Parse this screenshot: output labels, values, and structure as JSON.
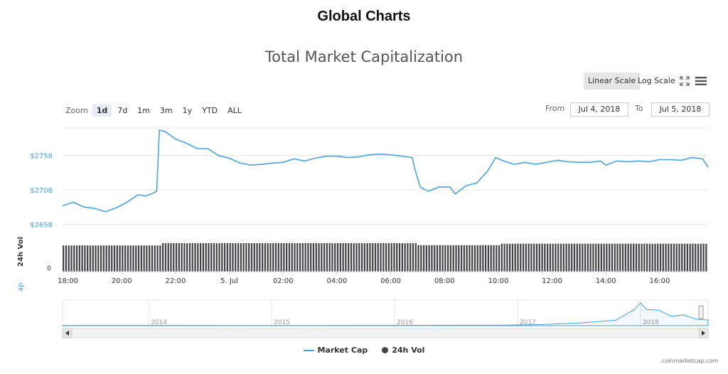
{
  "page": {
    "title": "Global Charts",
    "credit": "coinmarketcap.com"
  },
  "toolbar": {
    "linear_label": "Linear Scale",
    "log_label": "Log Scale",
    "expand_icon": "expand-icon",
    "menu_icon": "hamburger-menu-icon"
  },
  "zoom": {
    "label": "Zoom",
    "options": [
      "1d",
      "7d",
      "1m",
      "3m",
      "1y",
      "YTD",
      "ALL"
    ],
    "selected": "1d"
  },
  "range": {
    "from_label": "From",
    "from_value": "Jul 4, 2018",
    "to_label": "To",
    "to_value": "Jul 5, 2018"
  },
  "colors": {
    "market_cap": "#4aa3df",
    "volume": "#434348",
    "navigator": "#4aa3df"
  },
  "chart_data": {
    "type": "line",
    "title": "Total Market Capitalization",
    "ylabel": "Market Cap",
    "volume_ylabel": "24h Vol",
    "y_tick_labels": [
      "$2758",
      "$2708",
      "$2658"
    ],
    "y_ticks": [
      2758,
      2708,
      2658
    ],
    "ylim": [
      2648,
      2798
    ],
    "volume_tick_label": "0",
    "x_tick_labels": [
      "18:00",
      "20:00",
      "22:00",
      "5. Jul",
      "02:00",
      "04:00",
      "06:00",
      "08:00",
      "10:00",
      "12:00",
      "14:00",
      "16:00"
    ],
    "x_tick_hours": [
      18,
      20,
      22,
      24,
      26,
      28,
      30,
      32,
      34,
      36,
      38,
      40
    ],
    "x_hours_range": [
      17.8,
      41.8
    ],
    "series": [
      {
        "name": "Market Cap",
        "x": [
          17.8,
          18.2,
          18.6,
          19.0,
          19.4,
          19.8,
          20.2,
          20.6,
          20.9,
          21.1,
          21.3,
          21.4,
          21.6,
          22.0,
          22.4,
          22.8,
          23.2,
          23.6,
          24.0,
          24.4,
          24.8,
          25.2,
          25.6,
          26.0,
          26.4,
          26.8,
          27.2,
          27.6,
          28.0,
          28.4,
          28.8,
          29.2,
          29.6,
          30.0,
          30.4,
          30.8,
          30.9,
          31.1,
          31.4,
          31.8,
          32.2,
          32.4,
          32.8,
          33.2,
          33.6,
          33.9,
          34.2,
          34.6,
          35.0,
          35.4,
          35.8,
          36.2,
          36.6,
          37.0,
          37.4,
          37.8,
          38.0,
          38.4,
          38.8,
          39.2,
          39.6,
          40.0,
          40.4,
          40.8,
          41.2,
          41.6,
          41.8
        ],
        "values": [
          2685,
          2690,
          2683,
          2681,
          2676,
          2682,
          2690,
          2701,
          2699,
          2702,
          2706,
          2795,
          2793,
          2782,
          2776,
          2768,
          2768,
          2758,
          2754,
          2747,
          2744,
          2745,
          2747,
          2748,
          2753,
          2750,
          2754,
          2757,
          2757,
          2755,
          2756,
          2759,
          2760,
          2759,
          2757,
          2755,
          2738,
          2712,
          2706,
          2712,
          2712,
          2702,
          2714,
          2718,
          2735,
          2755,
          2750,
          2745,
          2748,
          2745,
          2748,
          2751,
          2749,
          2748,
          2748,
          2750,
          2744,
          2750,
          2749,
          2750,
          2749,
          2752,
          2752,
          2751,
          2755,
          2753,
          2741
        ]
      },
      {
        "name": "24h Vol",
        "relative_level_by_hour": [
          [
            17.8,
            0.92
          ],
          [
            21.4,
            0.92
          ],
          [
            21.5,
            1.0
          ],
          [
            30.9,
            1.0
          ],
          [
            31.0,
            0.93
          ],
          [
            34.0,
            0.93
          ],
          [
            34.1,
            0.98
          ],
          [
            41.8,
            0.98
          ]
        ]
      }
    ],
    "navigator": {
      "year_labels": [
        "2014",
        "2015",
        "2016",
        "2017",
        "2018"
      ],
      "year_positions": [
        2014,
        2015,
        2016,
        2017,
        2018
      ],
      "x_range": [
        2013.3,
        2018.55
      ],
      "series": [
        [
          2013.3,
          2
        ],
        [
          2014.0,
          2
        ],
        [
          2015.0,
          1.5
        ],
        [
          2016.0,
          2
        ],
        [
          2016.9,
          4
        ],
        [
          2017.2,
          8
        ],
        [
          2017.5,
          20
        ],
        [
          2017.8,
          40
        ],
        [
          2017.95,
          120
        ],
        [
          2018.0,
          170
        ],
        [
          2018.05,
          120
        ],
        [
          2018.15,
          115
        ],
        [
          2018.25,
          70
        ],
        [
          2018.35,
          80
        ],
        [
          2018.45,
          50
        ],
        [
          2018.5,
          45
        ],
        [
          2018.55,
          42
        ]
      ],
      "ylim": [
        0,
        180
      ]
    },
    "legend": [
      {
        "name": "Market Cap",
        "marker": "line"
      },
      {
        "name": "24h Vol",
        "marker": "dot"
      }
    ]
  }
}
